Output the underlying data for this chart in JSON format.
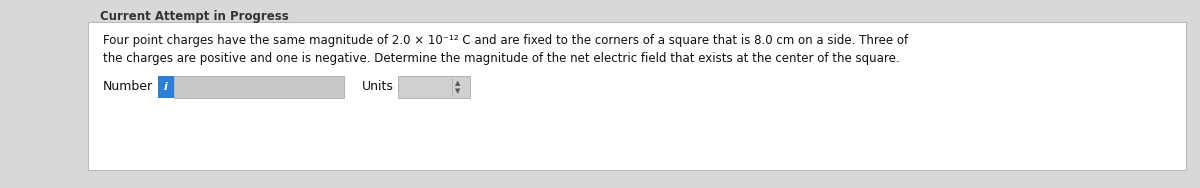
{
  "title": "Current Attempt in Progress",
  "line1": "Four point charges have the same magnitude of 2.0 × 10⁻¹² C and are fixed to the corners of a square that is 8.0 cm on a side. Three of",
  "line2": "the charges are positive and one is negative. Determine the magnitude of the net electric field that exists at the center of the square.",
  "number_label": "Number",
  "units_label": "Units",
  "outer_bg": "#d8d8d8",
  "box_bg": "#ffffff",
  "title_color": "#333333",
  "text_color": "#111111",
  "input_box_bg": "#c8c8c8",
  "input_box_border": "#aaaaaa",
  "blue_tab_color": "#2b7fd4",
  "units_box_bg": "#d0d0d0",
  "units_box_border": "#aaaaaa",
  "fig_width": 12.0,
  "fig_height": 1.88,
  "dpi": 100
}
